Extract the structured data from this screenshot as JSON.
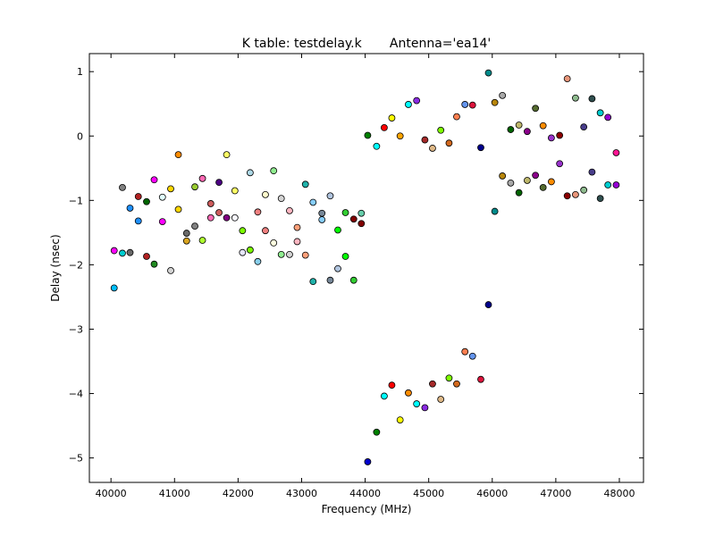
{
  "chart_data": {
    "type": "scatter",
    "title": "K table: testdelay.k       Antenna='ea14'",
    "xlabel": "Frequency (MHz)",
    "ylabel": "Delay (nsec)",
    "xlim": [
      39660,
      48380
    ],
    "ylim": [
      -5.38,
      1.28
    ],
    "xticks": [
      40000,
      41000,
      42000,
      43000,
      44000,
      45000,
      46000,
      47000,
      48000
    ],
    "yticks": [
      1,
      0,
      -1,
      -2,
      -3,
      -4,
      -5
    ],
    "ytick_labels": [
      "1",
      "0",
      "−1",
      "−2",
      "−3",
      "−4",
      "−5"
    ],
    "grid": false,
    "legend": "none",
    "marker": "circle",
    "points": [
      {
        "x": 40050,
        "y": -1.78,
        "color": "#ff00ff"
      },
      {
        "x": 40050,
        "y": -2.36,
        "color": "#00bfff"
      },
      {
        "x": 40180,
        "y": -0.8,
        "color": "#808080"
      },
      {
        "x": 40180,
        "y": -1.82,
        "color": "#00ced1"
      },
      {
        "x": 40300,
        "y": -1.12,
        "color": "#1e90ff"
      },
      {
        "x": 40300,
        "y": -1.81,
        "color": "#696969"
      },
      {
        "x": 40430,
        "y": -0.94,
        "color": "#b22222"
      },
      {
        "x": 40430,
        "y": -1.32,
        "color": "#1e90ff"
      },
      {
        "x": 40560,
        "y": -1.02,
        "color": "#006400"
      },
      {
        "x": 40560,
        "y": -1.87,
        "color": "#b22222"
      },
      {
        "x": 40680,
        "y": -0.68,
        "color": "#ff00ff"
      },
      {
        "x": 40680,
        "y": -1.99,
        "color": "#228b22"
      },
      {
        "x": 40810,
        "y": -0.95,
        "color": "#e0ffff"
      },
      {
        "x": 40810,
        "y": -1.33,
        "color": "#ff00ff"
      },
      {
        "x": 40940,
        "y": -0.82,
        "color": "#ffd700"
      },
      {
        "x": 40940,
        "y": -2.09,
        "color": "#d3d3d3"
      },
      {
        "x": 41060,
        "y": -0.29,
        "color": "#ff8c00"
      },
      {
        "x": 41060,
        "y": -1.14,
        "color": "#ffd700"
      },
      {
        "x": 41190,
        "y": -1.51,
        "color": "#696969"
      },
      {
        "x": 41190,
        "y": -1.63,
        "color": "#daa520"
      },
      {
        "x": 41320,
        "y": -0.79,
        "color": "#9acd32"
      },
      {
        "x": 41320,
        "y": -1.4,
        "color": "#808080"
      },
      {
        "x": 41440,
        "y": -0.66,
        "color": "#ff69b4"
      },
      {
        "x": 41440,
        "y": -1.62,
        "color": "#adff2f"
      },
      {
        "x": 41570,
        "y": -1.05,
        "color": "#cd5c5c"
      },
      {
        "x": 41570,
        "y": -1.27,
        "color": "#ff69b4"
      },
      {
        "x": 41700,
        "y": -0.72,
        "color": "#4b0082"
      },
      {
        "x": 41700,
        "y": -1.19,
        "color": "#cd5c5c"
      },
      {
        "x": 41820,
        "y": -0.29,
        "color": "#ffff66"
      },
      {
        "x": 41820,
        "y": -1.27,
        "color": "#800080"
      },
      {
        "x": 41950,
        "y": -0.85,
        "color": "#ffff66"
      },
      {
        "x": 41950,
        "y": -1.27,
        "color": "#f8f8ff"
      },
      {
        "x": 42070,
        "y": -1.47,
        "color": "#7cfc00"
      },
      {
        "x": 42070,
        "y": -1.81,
        "color": "#e6e6fa"
      },
      {
        "x": 42190,
        "y": -0.57,
        "color": "#add8e6"
      },
      {
        "x": 42190,
        "y": -1.77,
        "color": "#7cfc00"
      },
      {
        "x": 42310,
        "y": -1.18,
        "color": "#f08080"
      },
      {
        "x": 42310,
        "y": -1.95,
        "color": "#87ceeb"
      },
      {
        "x": 42430,
        "y": -0.91,
        "color": "#fffacd"
      },
      {
        "x": 42430,
        "y": -1.47,
        "color": "#f08080"
      },
      {
        "x": 42560,
        "y": -0.54,
        "color": "#90ee90"
      },
      {
        "x": 42560,
        "y": -1.66,
        "color": "#ffffe0"
      },
      {
        "x": 42680,
        "y": -0.97,
        "color": "#d3d3d3"
      },
      {
        "x": 42680,
        "y": -1.84,
        "color": "#90ee90"
      },
      {
        "x": 42810,
        "y": -1.16,
        "color": "#ffb6c1"
      },
      {
        "x": 42810,
        "y": -1.84,
        "color": "#d3d3d3"
      },
      {
        "x": 42930,
        "y": -1.42,
        "color": "#ffa07a"
      },
      {
        "x": 42930,
        "y": -1.64,
        "color": "#ffb6c1"
      },
      {
        "x": 43060,
        "y": -0.75,
        "color": "#20b2aa"
      },
      {
        "x": 43060,
        "y": -1.85,
        "color": "#ffa07a"
      },
      {
        "x": 43180,
        "y": -1.03,
        "color": "#87cefa"
      },
      {
        "x": 43180,
        "y": -2.26,
        "color": "#20b2aa"
      },
      {
        "x": 43320,
        "y": -1.2,
        "color": "#778899"
      },
      {
        "x": 43320,
        "y": -1.3,
        "color": "#87cefa"
      },
      {
        "x": 43450,
        "y": -0.93,
        "color": "#b0c4de"
      },
      {
        "x": 43450,
        "y": -2.24,
        "color": "#778899"
      },
      {
        "x": 43570,
        "y": -1.46,
        "color": "#00ff00"
      },
      {
        "x": 43570,
        "y": -2.06,
        "color": "#b0c4de"
      },
      {
        "x": 43690,
        "y": -1.19,
        "color": "#32cd32"
      },
      {
        "x": 43690,
        "y": -1.87,
        "color": "#00ff00"
      },
      {
        "x": 43820,
        "y": -1.29,
        "color": "#800000"
      },
      {
        "x": 43820,
        "y": -2.24,
        "color": "#32cd32"
      },
      {
        "x": 43940,
        "y": -1.2,
        "color": "#66cdaa"
      },
      {
        "x": 43940,
        "y": -1.36,
        "color": "#800000"
      },
      {
        "x": 44040,
        "y": 0.01,
        "color": "#008000"
      },
      {
        "x": 44040,
        "y": -5.06,
        "color": "#0000cd"
      },
      {
        "x": 44180,
        "y": -0.16,
        "color": "#00ffff"
      },
      {
        "x": 44180,
        "y": -4.6,
        "color": "#008000"
      },
      {
        "x": 44300,
        "y": 0.13,
        "color": "#ff0000"
      },
      {
        "x": 44300,
        "y": -4.04,
        "color": "#00ffff"
      },
      {
        "x": 44420,
        "y": 0.28,
        "color": "#ffff00"
      },
      {
        "x": 44420,
        "y": -3.87,
        "color": "#ff0000"
      },
      {
        "x": 44550,
        "y": 0.0,
        "color": "#ffa500"
      },
      {
        "x": 44550,
        "y": -4.41,
        "color": "#ffff00"
      },
      {
        "x": 44680,
        "y": 0.49,
        "color": "#00ffff"
      },
      {
        "x": 44680,
        "y": -3.99,
        "color": "#ff8c00"
      },
      {
        "x": 44810,
        "y": 0.55,
        "color": "#8a2be2"
      },
      {
        "x": 44810,
        "y": -4.16,
        "color": "#00ffff"
      },
      {
        "x": 44940,
        "y": -0.06,
        "color": "#a52a2a"
      },
      {
        "x": 44940,
        "y": -4.22,
        "color": "#8a2be2"
      },
      {
        "x": 45060,
        "y": -0.19,
        "color": "#deb887"
      },
      {
        "x": 45060,
        "y": -3.85,
        "color": "#a52a2a"
      },
      {
        "x": 45190,
        "y": 0.09,
        "color": "#7fff00"
      },
      {
        "x": 45190,
        "y": -4.09,
        "color": "#deb887"
      },
      {
        "x": 45320,
        "y": -0.11,
        "color": "#d2691e"
      },
      {
        "x": 45320,
        "y": -3.76,
        "color": "#7fff00"
      },
      {
        "x": 45440,
        "y": 0.3,
        "color": "#ff7f50"
      },
      {
        "x": 45440,
        "y": -3.85,
        "color": "#d2691e"
      },
      {
        "x": 45570,
        "y": 0.49,
        "color": "#6495ed"
      },
      {
        "x": 45570,
        "y": -3.35,
        "color": "#ff7f50"
      },
      {
        "x": 45690,
        "y": 0.48,
        "color": "#dc143c"
      },
      {
        "x": 45690,
        "y": -3.42,
        "color": "#6495ed"
      },
      {
        "x": 45820,
        "y": -0.18,
        "color": "#00008b"
      },
      {
        "x": 45820,
        "y": -3.78,
        "color": "#dc143c"
      },
      {
        "x": 45940,
        "y": 0.98,
        "color": "#008b8b"
      },
      {
        "x": 45940,
        "y": -2.62,
        "color": "#00008b"
      },
      {
        "x": 46040,
        "y": 0.52,
        "color": "#b8860b"
      },
      {
        "x": 46040,
        "y": -1.17,
        "color": "#008b8b"
      },
      {
        "x": 46160,
        "y": 0.63,
        "color": "#a9a9a9"
      },
      {
        "x": 46160,
        "y": -0.62,
        "color": "#b8860b"
      },
      {
        "x": 46290,
        "y": 0.1,
        "color": "#006400"
      },
      {
        "x": 46290,
        "y": -0.73,
        "color": "#a9a9a9"
      },
      {
        "x": 46420,
        "y": 0.17,
        "color": "#bdb76b"
      },
      {
        "x": 46420,
        "y": -0.88,
        "color": "#006400"
      },
      {
        "x": 46550,
        "y": 0.07,
        "color": "#8b008b"
      },
      {
        "x": 46550,
        "y": -0.69,
        "color": "#bdb76b"
      },
      {
        "x": 46680,
        "y": 0.43,
        "color": "#556b2f"
      },
      {
        "x": 46680,
        "y": -0.61,
        "color": "#8b008b"
      },
      {
        "x": 46800,
        "y": 0.16,
        "color": "#ff8c00"
      },
      {
        "x": 46800,
        "y": -0.8,
        "color": "#556b2f"
      },
      {
        "x": 46930,
        "y": -0.03,
        "color": "#9932cc"
      },
      {
        "x": 46930,
        "y": -0.71,
        "color": "#ff8c00"
      },
      {
        "x": 47060,
        "y": 0.01,
        "color": "#8b0000"
      },
      {
        "x": 47060,
        "y": -0.43,
        "color": "#9932cc"
      },
      {
        "x": 47180,
        "y": 0.89,
        "color": "#e9967a"
      },
      {
        "x": 47180,
        "y": -0.93,
        "color": "#8b0000"
      },
      {
        "x": 47310,
        "y": 0.59,
        "color": "#8fbc8f"
      },
      {
        "x": 47310,
        "y": -0.91,
        "color": "#e9967a"
      },
      {
        "x": 47440,
        "y": 0.14,
        "color": "#483d8b"
      },
      {
        "x": 47440,
        "y": -0.84,
        "color": "#8fbc8f"
      },
      {
        "x": 47570,
        "y": 0.58,
        "color": "#2f4f4f"
      },
      {
        "x": 47570,
        "y": -0.56,
        "color": "#483d8b"
      },
      {
        "x": 47700,
        "y": 0.36,
        "color": "#00ced1"
      },
      {
        "x": 47700,
        "y": -0.97,
        "color": "#2f4f4f"
      },
      {
        "x": 47820,
        "y": 0.29,
        "color": "#9400d3"
      },
      {
        "x": 47820,
        "y": -0.76,
        "color": "#00ced1"
      },
      {
        "x": 47950,
        "y": -0.26,
        "color": "#ff1493"
      },
      {
        "x": 47950,
        "y": -0.76,
        "color": "#9400d3"
      }
    ]
  }
}
